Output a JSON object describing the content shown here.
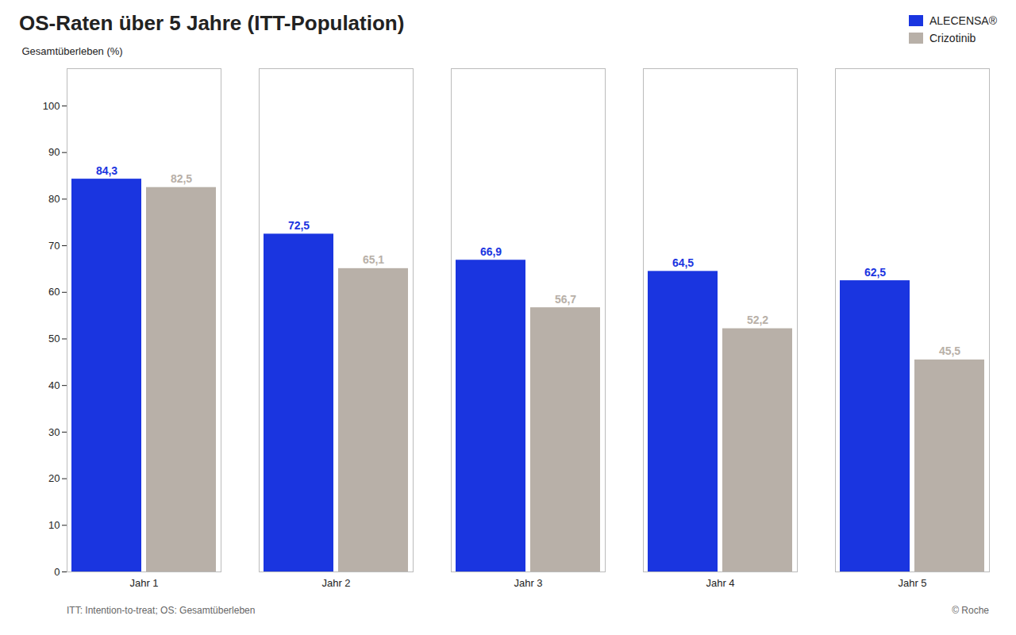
{
  "chart_data": {
    "type": "bar",
    "title": "OS-Raten über 5 Jahre (ITT-Population)",
    "ylabel": "Gesamtüberleben (%)",
    "categories": [
      "Jahr 1",
      "Jahr 2",
      "Jahr 3",
      "Jahr 4",
      "Jahr 5"
    ],
    "series": [
      {
        "name": "ALECENSA®",
        "color": "#1a35e0",
        "values": [
          84.3,
          72.5,
          66.9,
          64.5,
          62.5
        ],
        "value_labels": [
          "84,3",
          "72,5",
          "66,9",
          "64,5",
          "62,5"
        ]
      },
      {
        "name": "Crizotinib",
        "color": "#b8b0a8",
        "values": [
          82.5,
          65.1,
          56.7,
          52.2,
          45.5
        ],
        "value_labels": [
          "82,5",
          "65,1",
          "56,7",
          "52,2",
          "45,5"
        ]
      }
    ],
    "ylim": [
      0,
      108
    ],
    "yticks": [
      0,
      10,
      20,
      30,
      40,
      50,
      60,
      70,
      80,
      90,
      100
    ],
    "grid": false,
    "legend": "upper right",
    "data_labels": true,
    "annotations": [
      "ITT: Intention-to-treat; OS: Gesamtüberleben",
      "© Roche"
    ]
  }
}
